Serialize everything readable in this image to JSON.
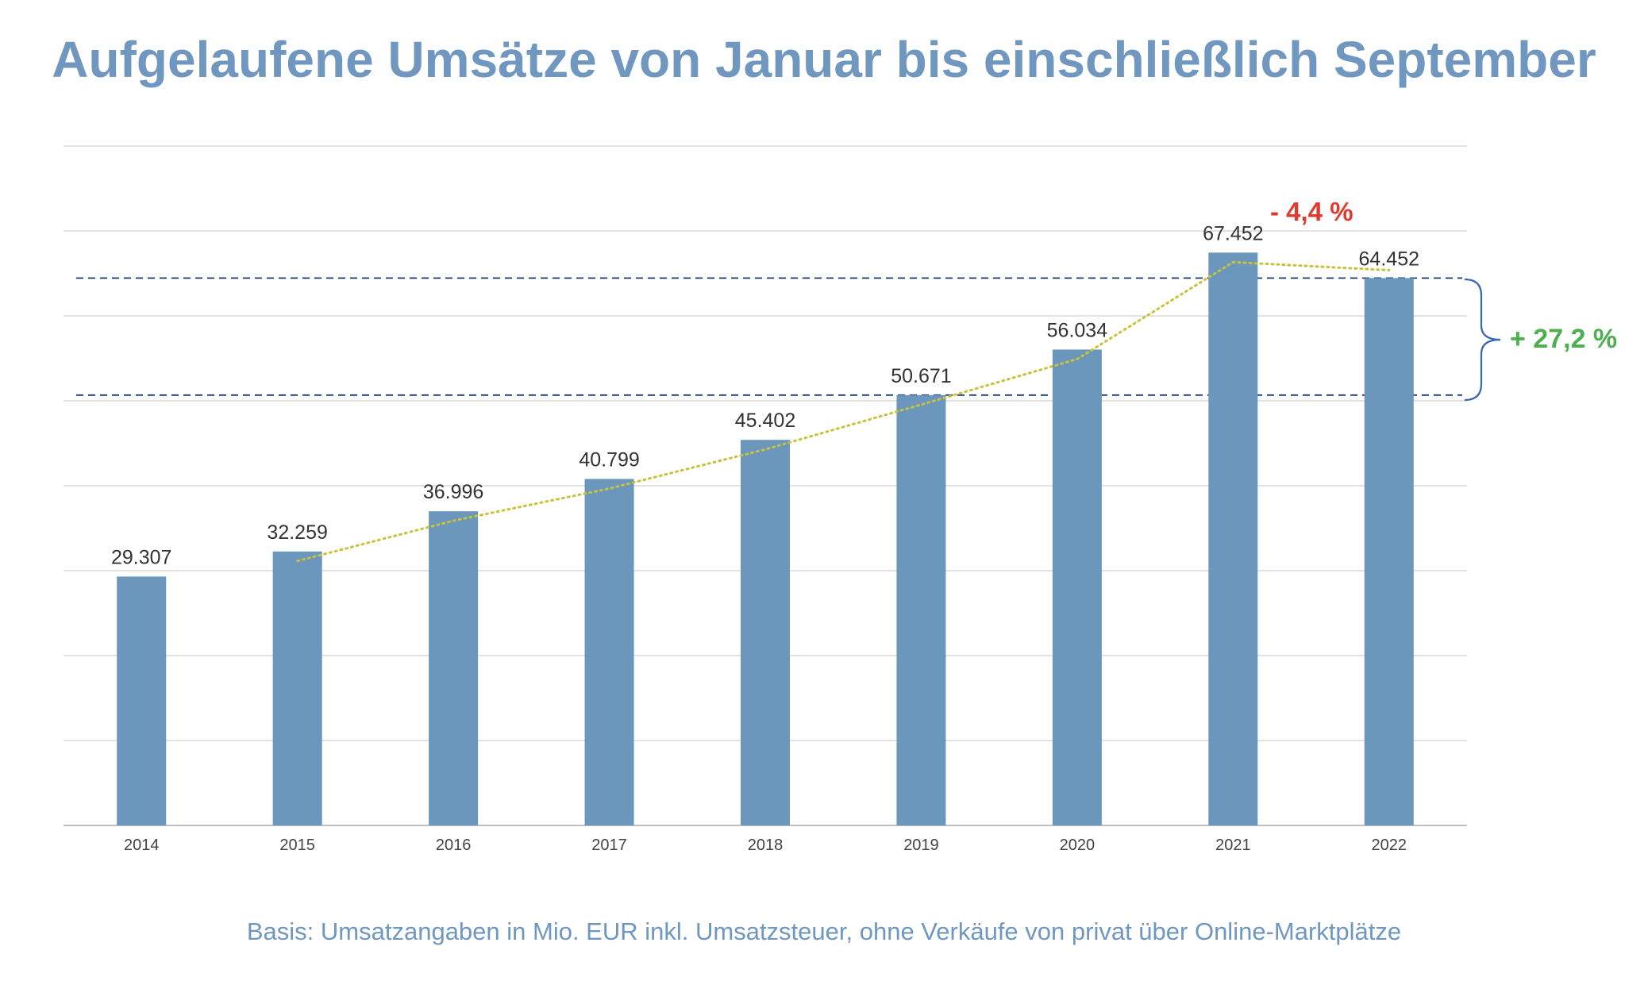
{
  "chart_data": {
    "type": "bar",
    "title": "Aufgelaufene Umsätze von Januar bis einschließlich September",
    "categories": [
      "2014",
      "2015",
      "2016",
      "2017",
      "2018",
      "2019",
      "2020",
      "2021",
      "2022"
    ],
    "values": [
      29307,
      32259,
      36996,
      40799,
      45402,
      50671,
      56034,
      67452,
      64452
    ],
    "value_labels": [
      "29.307",
      "32.259",
      "36.996",
      "40.799",
      "45.402",
      "50.671",
      "56.034",
      "67.452",
      "64.452"
    ],
    "ylim": [
      0,
      80000
    ],
    "grid": true,
    "bar_color": "#6b97bd",
    "trend_line": {
      "style": "dotted",
      "color": "#c9c23a",
      "from_category": "2015",
      "to_category": "2022",
      "values": [
        32259,
        36996,
        40799,
        45402,
        50671,
        56034,
        67452,
        64452
      ]
    },
    "reference_lines": [
      {
        "value": 64452,
        "style": "dashed",
        "color": "#1f3a6e"
      },
      {
        "value": 50671,
        "style": "dashed",
        "color": "#1f3a6e"
      }
    ],
    "annotations": {
      "change_2021_2022": {
        "text": "- 4,4 %",
        "color": "#e03a2f"
      },
      "change_2019_2022": {
        "text": "+ 27,2 %",
        "color": "#4caf50",
        "bracket_color": "#3a66b8"
      }
    },
    "footnote": "Basis: Umsatzangaben in Mio. EUR inkl. Umsatzsteuer, ohne Verkäufe von privat über Online-Marktplätze"
  }
}
